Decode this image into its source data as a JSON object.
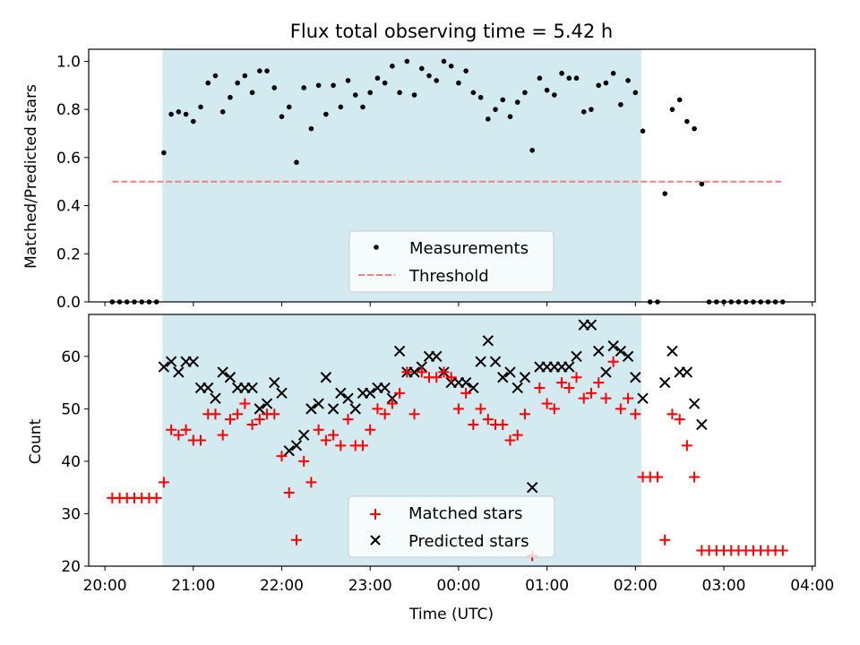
{
  "chart_data": [
    {
      "type": "scatter",
      "title": "Flux total observing time = 5.42 h",
      "ylabel": "Matched/Predicted stars",
      "xlabel": "",
      "xlim": [
        "19:49",
        "04:02"
      ],
      "ylim": [
        0,
        1.05
      ],
      "yticks": [
        "0.0",
        "0.2",
        "0.4",
        "0.6",
        "0.8",
        "1.0"
      ],
      "grid": false,
      "legend_placement": "lower-center",
      "shaded_interval": {
        "start": "20:39",
        "end": "02:04",
        "color": "#d3eaf0"
      },
      "threshold": {
        "name": "Threshold",
        "value": 0.5,
        "x_start": "20:05",
        "x_end": "03:40",
        "color": "#f08080",
        "style": "dashed"
      },
      "series": [
        {
          "name": "Measurements",
          "marker": "dot",
          "color": "#000000",
          "points": [
            [
              "20:05",
              0
            ],
            [
              "20:10",
              0
            ],
            [
              "20:15",
              0
            ],
            [
              "20:20",
              0
            ],
            [
              "20:25",
              0
            ],
            [
              "20:30",
              0
            ],
            [
              "20:35",
              0
            ],
            [
              "20:40",
              0.62
            ],
            [
              "20:45",
              0.78
            ],
            [
              "20:50",
              0.79
            ],
            [
              "20:55",
              0.78
            ],
            [
              "21:00",
              0.75
            ],
            [
              "21:05",
              0.81
            ],
            [
              "21:10",
              0.91
            ],
            [
              "21:15",
              0.94
            ],
            [
              "21:20",
              0.79
            ],
            [
              "21:25",
              0.85
            ],
            [
              "21:30",
              0.91
            ],
            [
              "21:35",
              0.94
            ],
            [
              "21:40",
              0.87
            ],
            [
              "21:45",
              0.96
            ],
            [
              "21:50",
              0.96
            ],
            [
              "21:55",
              0.89
            ],
            [
              "22:00",
              0.77
            ],
            [
              "22:05",
              0.81
            ],
            [
              "22:10",
              0.58
            ],
            [
              "22:15",
              0.89
            ],
            [
              "22:20",
              0.72
            ],
            [
              "22:25",
              0.9
            ],
            [
              "22:30",
              0.78
            ],
            [
              "22:35",
              0.9
            ],
            [
              "22:40",
              0.81
            ],
            [
              "22:45",
              0.92
            ],
            [
              "22:50",
              0.86
            ],
            [
              "22:55",
              0.81
            ],
            [
              "23:00",
              0.87
            ],
            [
              "23:05",
              0.93
            ],
            [
              "23:10",
              0.91
            ],
            [
              "23:15",
              0.98
            ],
            [
              "23:20",
              0.87
            ],
            [
              "23:25",
              1.0
            ],
            [
              "23:30",
              0.86
            ],
            [
              "23:35",
              0.97
            ],
            [
              "23:40",
              0.94
            ],
            [
              "23:45",
              0.92
            ],
            [
              "23:50",
              1.0
            ],
            [
              "23:55",
              0.98
            ],
            [
              "00:00",
              0.91
            ],
            [
              "00:05",
              0.96
            ],
            [
              "00:10",
              0.87
            ],
            [
              "00:15",
              0.85
            ],
            [
              "00:20",
              0.76
            ],
            [
              "00:25",
              0.8
            ],
            [
              "00:30",
              0.84
            ],
            [
              "00:35",
              0.77
            ],
            [
              "00:40",
              0.83
            ],
            [
              "00:45",
              0.87
            ],
            [
              "00:50",
              0.63
            ],
            [
              "00:55",
              0.93
            ],
            [
              "01:00",
              0.88
            ],
            [
              "01:05",
              0.86
            ],
            [
              "01:10",
              0.95
            ],
            [
              "01:15",
              0.93
            ],
            [
              "01:20",
              0.93
            ],
            [
              "01:25",
              0.79
            ],
            [
              "01:30",
              0.8
            ],
            [
              "01:35",
              0.9
            ],
            [
              "01:40",
              0.91
            ],
            [
              "01:45",
              0.95
            ],
            [
              "01:50",
              0.82
            ],
            [
              "01:55",
              0.92
            ],
            [
              "02:00",
              0.87
            ],
            [
              "02:05",
              0.71
            ],
            [
              "02:10",
              0
            ],
            [
              "02:15",
              0
            ],
            [
              "02:20",
              0.45
            ],
            [
              "02:25",
              0.8
            ],
            [
              "02:30",
              0.84
            ],
            [
              "02:35",
              0.75
            ],
            [
              "02:40",
              0.72
            ],
            [
              "02:45",
              0.49
            ],
            [
              "02:50",
              0
            ],
            [
              "02:55",
              0
            ],
            [
              "03:00",
              0
            ],
            [
              "03:05",
              0
            ],
            [
              "03:10",
              0
            ],
            [
              "03:15",
              0
            ],
            [
              "03:20",
              0
            ],
            [
              "03:25",
              0
            ],
            [
              "03:30",
              0
            ],
            [
              "03:35",
              0
            ],
            [
              "03:40",
              0
            ]
          ]
        }
      ]
    },
    {
      "type": "scatter",
      "title": "",
      "ylabel": "Count",
      "xlabel": "Time (UTC)",
      "xlim": [
        "19:49",
        "04:02"
      ],
      "ylim": [
        20,
        68
      ],
      "xticks": [
        "20:00",
        "21:00",
        "22:00",
        "23:00",
        "00:00",
        "01:00",
        "02:00",
        "03:00",
        "04:00"
      ],
      "yticks": [
        "20",
        "30",
        "40",
        "50",
        "60"
      ],
      "grid": false,
      "legend_placement": "lower-center",
      "shaded_interval": {
        "start": "20:39",
        "end": "02:04",
        "color": "#d3eaf0"
      },
      "series": [
        {
          "name": "Matched stars",
          "marker": "plus",
          "color": "#ff0000",
          "points": [
            [
              "20:05",
              33
            ],
            [
              "20:10",
              33
            ],
            [
              "20:15",
              33
            ],
            [
              "20:20",
              33
            ],
            [
              "20:25",
              33
            ],
            [
              "20:30",
              33
            ],
            [
              "20:35",
              33
            ],
            [
              "20:40",
              36
            ],
            [
              "20:45",
              46
            ],
            [
              "20:50",
              45
            ],
            [
              "20:55",
              46
            ],
            [
              "21:00",
              44
            ],
            [
              "21:05",
              44
            ],
            [
              "21:10",
              49
            ],
            [
              "21:15",
              49
            ],
            [
              "21:20",
              45
            ],
            [
              "21:25",
              48
            ],
            [
              "21:30",
              49
            ],
            [
              "21:35",
              51
            ],
            [
              "21:40",
              47
            ],
            [
              "21:45",
              48
            ],
            [
              "21:50",
              49
            ],
            [
              "21:55",
              49
            ],
            [
              "22:00",
              41
            ],
            [
              "22:05",
              34
            ],
            [
              "22:10",
              25
            ],
            [
              "22:15",
              40
            ],
            [
              "22:20",
              36
            ],
            [
              "22:25",
              46
            ],
            [
              "22:30",
              44
            ],
            [
              "22:35",
              45
            ],
            [
              "22:40",
              43
            ],
            [
              "22:45",
              48
            ],
            [
              "22:50",
              43
            ],
            [
              "22:55",
              43
            ],
            [
              "23:00",
              46
            ],
            [
              "23:05",
              50
            ],
            [
              "23:10",
              49
            ],
            [
              "23:15",
              51
            ],
            [
              "23:20",
              53
            ],
            [
              "23:25",
              57
            ],
            [
              "23:30",
              49
            ],
            [
              "23:35",
              57
            ],
            [
              "23:40",
              56
            ],
            [
              "23:45",
              56
            ],
            [
              "23:50",
              57
            ],
            [
              "23:55",
              56
            ],
            [
              "00:00",
              50
            ],
            [
              "00:05",
              53
            ],
            [
              "00:10",
              47
            ],
            [
              "00:15",
              50
            ],
            [
              "00:20",
              48
            ],
            [
              "00:25",
              47
            ],
            [
              "00:30",
              47
            ],
            [
              "00:35",
              44
            ],
            [
              "00:40",
              45
            ],
            [
              "00:45",
              49
            ],
            [
              "00:50",
              22
            ],
            [
              "00:55",
              54
            ],
            [
              "01:00",
              51
            ],
            [
              "01:05",
              50
            ],
            [
              "01:10",
              55
            ],
            [
              "01:15",
              54
            ],
            [
              "01:20",
              56
            ],
            [
              "01:25",
              52
            ],
            [
              "01:30",
              53
            ],
            [
              "01:35",
              55
            ],
            [
              "01:40",
              52
            ],
            [
              "01:45",
              59
            ],
            [
              "01:50",
              50
            ],
            [
              "01:55",
              52
            ],
            [
              "02:00",
              49
            ],
            [
              "02:05",
              37
            ],
            [
              "02:10",
              37
            ],
            [
              "02:15",
              37
            ],
            [
              "02:20",
              25
            ],
            [
              "02:25",
              49
            ],
            [
              "02:30",
              48
            ],
            [
              "02:35",
              43
            ],
            [
              "02:40",
              37
            ],
            [
              "02:45",
              23
            ],
            [
              "02:50",
              23
            ],
            [
              "02:55",
              23
            ],
            [
              "03:00",
              23
            ],
            [
              "03:05",
              23
            ],
            [
              "03:10",
              23
            ],
            [
              "03:15",
              23
            ],
            [
              "03:20",
              23
            ],
            [
              "03:25",
              23
            ],
            [
              "03:30",
              23
            ],
            [
              "03:35",
              23
            ],
            [
              "03:40",
              23
            ]
          ]
        },
        {
          "name": "Predicted stars",
          "marker": "x",
          "color": "#000000",
          "points": [
            [
              "20:40",
              58
            ],
            [
              "20:45",
              59
            ],
            [
              "20:50",
              57
            ],
            [
              "20:55",
              59
            ],
            [
              "21:00",
              59
            ],
            [
              "21:05",
              54
            ],
            [
              "21:10",
              54
            ],
            [
              "21:15",
              52
            ],
            [
              "21:20",
              57
            ],
            [
              "21:25",
              56
            ],
            [
              "21:30",
              54
            ],
            [
              "21:35",
              54
            ],
            [
              "21:40",
              54
            ],
            [
              "21:45",
              50
            ],
            [
              "21:50",
              51
            ],
            [
              "21:55",
              55
            ],
            [
              "22:00",
              53
            ],
            [
              "22:05",
              42
            ],
            [
              "22:10",
              43
            ],
            [
              "22:15",
              45
            ],
            [
              "22:20",
              50
            ],
            [
              "22:25",
              51
            ],
            [
              "22:30",
              56
            ],
            [
              "22:35",
              50
            ],
            [
              "22:40",
              53
            ],
            [
              "22:45",
              52
            ],
            [
              "22:50",
              50
            ],
            [
              "22:55",
              53
            ],
            [
              "23:00",
              53
            ],
            [
              "23:05",
              54
            ],
            [
              "23:10",
              54
            ],
            [
              "23:15",
              52
            ],
            [
              "23:20",
              61
            ],
            [
              "23:25",
              57
            ],
            [
              "23:30",
              57
            ],
            [
              "23:35",
              58
            ],
            [
              "23:40",
              60
            ],
            [
              "23:45",
              60
            ],
            [
              "23:50",
              57
            ],
            [
              "23:55",
              55
            ],
            [
              "00:00",
              55
            ],
            [
              "00:05",
              55
            ],
            [
              "00:10",
              54
            ],
            [
              "00:15",
              59
            ],
            [
              "00:20",
              63
            ],
            [
              "00:25",
              59
            ],
            [
              "00:30",
              56
            ],
            [
              "00:35",
              57
            ],
            [
              "00:40",
              54
            ],
            [
              "00:45",
              56
            ],
            [
              "00:50",
              35
            ],
            [
              "00:55",
              58
            ],
            [
              "01:00",
              58
            ],
            [
              "01:05",
              58
            ],
            [
              "01:10",
              58
            ],
            [
              "01:15",
              58
            ],
            [
              "01:20",
              60
            ],
            [
              "01:25",
              66
            ],
            [
              "01:30",
              66
            ],
            [
              "01:35",
              61
            ],
            [
              "01:40",
              57
            ],
            [
              "01:45",
              62
            ],
            [
              "01:50",
              61
            ],
            [
              "01:55",
              60
            ],
            [
              "02:00",
              56
            ],
            [
              "02:05",
              52
            ],
            [
              "02:20",
              55
            ],
            [
              "02:25",
              61
            ],
            [
              "02:30",
              57
            ],
            [
              "02:35",
              57
            ],
            [
              "02:40",
              51
            ],
            [
              "02:45",
              47
            ]
          ]
        }
      ]
    }
  ]
}
